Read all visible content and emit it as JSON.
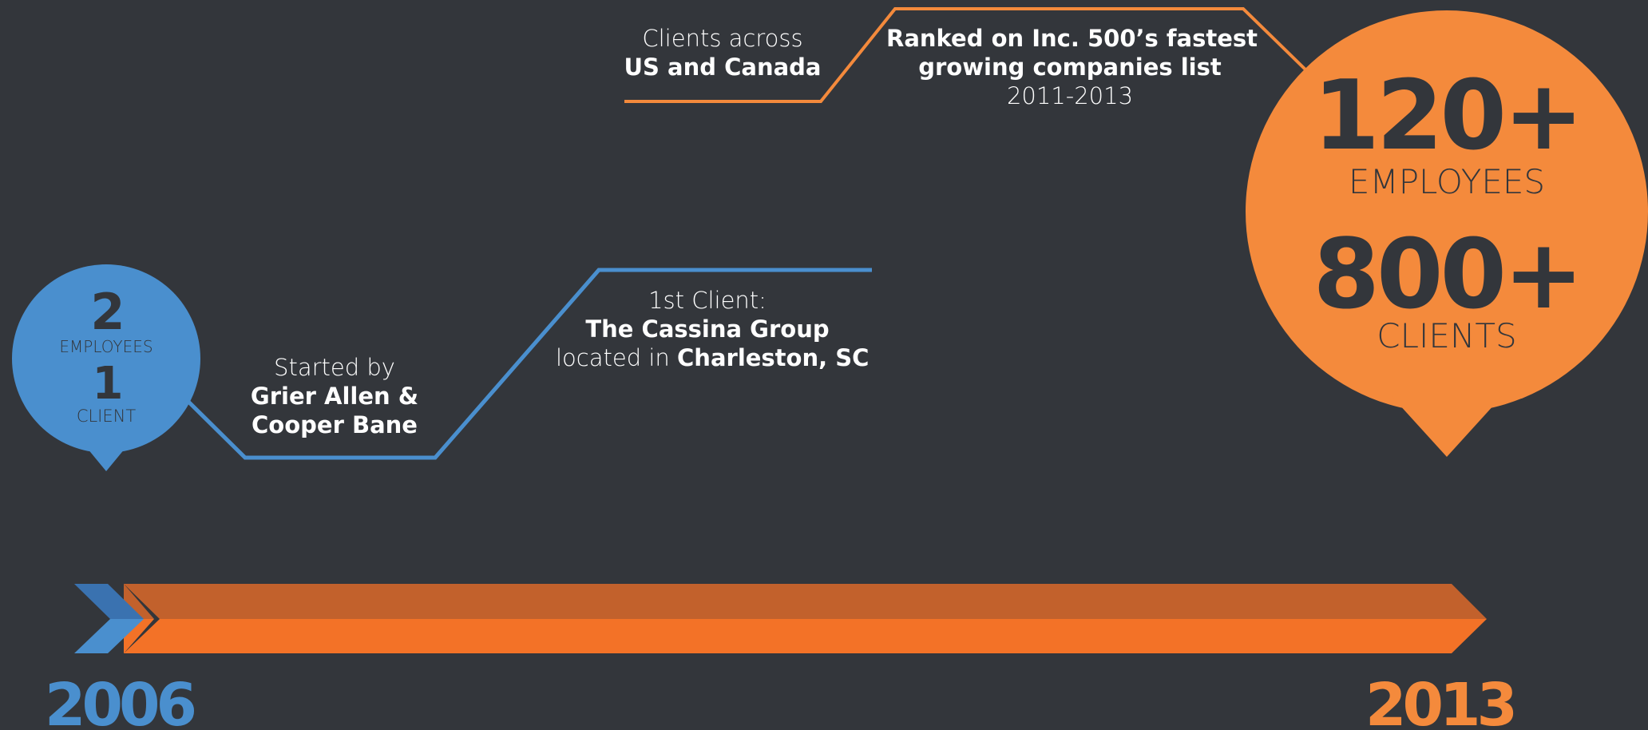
{
  "colors": {
    "background": "#33363b",
    "blue": "#4a8fce",
    "blue_dark": "#3a72b0",
    "orange": "#f48a3c",
    "orange_bar": "#f37227",
    "orange_bar_dark": "#c2612c",
    "text_dark": "#33363b",
    "text_light": "#ffffff"
  },
  "start_bubble": {
    "employees_count": "2",
    "employees_label": "EMPLOYEES",
    "clients_count": "1",
    "clients_label": "CLIENT"
  },
  "end_bubble": {
    "employees_count": "120+",
    "employees_label": "EMPLOYEES",
    "clients_count": "800+",
    "clients_label": "CLIENTS"
  },
  "milestones": {
    "founders": {
      "line1": "Started by",
      "line2": "Grier Allen &",
      "line3": "Cooper Bane"
    },
    "first_client": {
      "line1": "1st Client:",
      "line2": "The Cassina Group",
      "line3_prefix": "located in",
      "line3_bold": "Charleston, SC"
    },
    "clients_across": {
      "line1": "Clients across",
      "line2": "US and Canada"
    },
    "ranked": {
      "line1": "Ranked on Inc. 500’s fastest",
      "line2": "growing companies list",
      "line3": "2011-2013"
    }
  },
  "timeline": {
    "start_year": "2006",
    "end_year": "2013"
  }
}
